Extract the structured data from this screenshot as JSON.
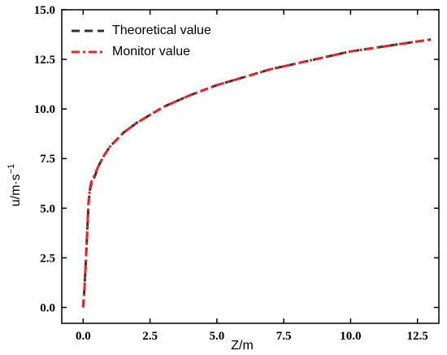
{
  "chart_data": {
    "type": "line",
    "xlabel": "Z/m",
    "ylabel_main": "u/m·s",
    "ylabel_sup": "−1",
    "xlim": [
      -0.8,
      13.3
    ],
    "ylim": [
      -0.8,
      15.0
    ],
    "xticks": [
      0.0,
      2.5,
      5.0,
      7.5,
      10.0,
      12.5
    ],
    "yticks": [
      0.0,
      2.5,
      5.0,
      7.5,
      10.0,
      12.5,
      15.0
    ],
    "x_tick_labels": [
      "0.0",
      "2.5",
      "5.0",
      "7.5",
      "10.0",
      "12.5"
    ],
    "y_tick_labels": [
      "0.0",
      "2.5",
      "5.0",
      "7.5",
      "10.0",
      "12.5",
      "15.0"
    ],
    "legend_position": "top-left",
    "series": [
      {
        "name": "Theoretical value",
        "color": "#333333",
        "style": "dash",
        "x": [
          0.0,
          0.05,
          0.1,
          0.15,
          0.2,
          0.25,
          0.3,
          0.4,
          0.6,
          0.8,
          1.0,
          1.5,
          2.0,
          3.0,
          4.0,
          5.0,
          6.0,
          7.0,
          8.0,
          9.0,
          10.0,
          11.0,
          12.0,
          13.0
        ],
        "values": [
          0.0,
          1.0,
          2.3,
          3.8,
          5.2,
          5.9,
          6.2,
          6.5,
          7.2,
          7.7,
          8.1,
          8.8,
          9.3,
          10.1,
          10.7,
          11.2,
          11.6,
          12.0,
          12.3,
          12.6,
          12.9,
          13.1,
          13.3,
          13.5
        ]
      },
      {
        "name": "Monitor value",
        "color": "#e8262a",
        "style": "dashdot",
        "x": [
          0.0,
          0.05,
          0.1,
          0.15,
          0.2,
          0.25,
          0.3,
          0.4,
          0.6,
          0.8,
          1.0,
          1.5,
          2.0,
          3.0,
          4.0,
          5.0,
          6.0,
          7.0,
          8.0,
          9.0,
          10.0,
          11.0,
          12.0,
          13.0
        ],
        "values": [
          0.0,
          1.0,
          2.3,
          3.8,
          5.3,
          6.0,
          6.3,
          6.6,
          7.2,
          7.7,
          8.1,
          8.8,
          9.3,
          10.1,
          10.7,
          11.2,
          11.6,
          12.0,
          12.3,
          12.6,
          12.9,
          13.1,
          13.3,
          13.5
        ]
      }
    ]
  }
}
